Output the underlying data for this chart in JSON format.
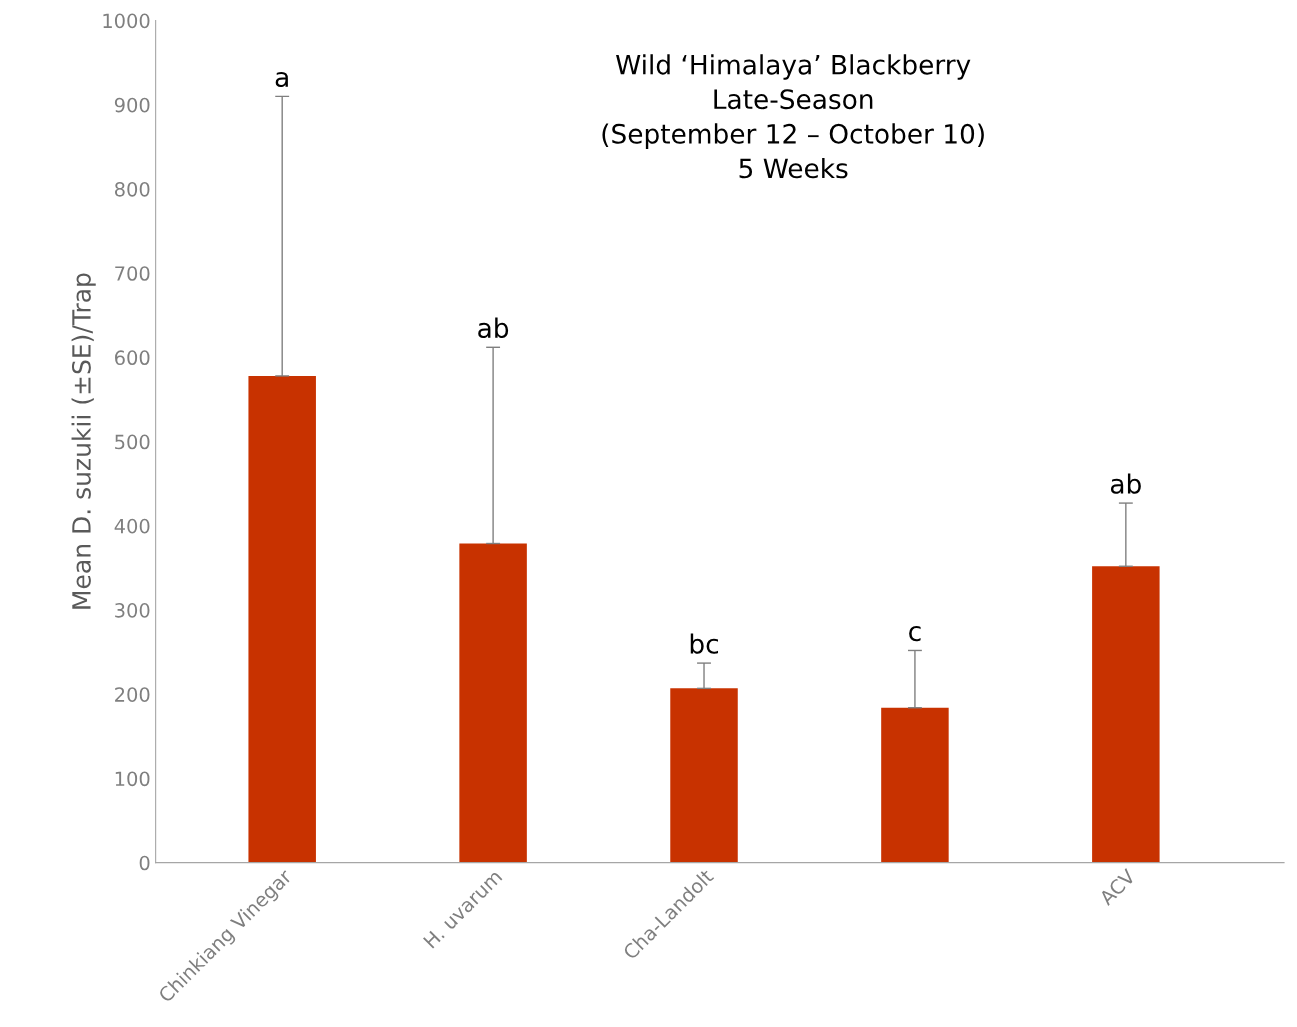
{
  "chart_data": {
    "type": "bar",
    "title": "Wild ‘Himalaya’ Blackberry\nLate-Season\n(September 12 – October 10)\n5 Weeks",
    "ylabel": "Mean D. suzukii (±SE)/Trap",
    "categories": [
      "Chinkiang Vinegar",
      "H. uvarum",
      "Cha-Landolt",
      null,
      "ACV"
    ],
    "values": [
      578,
      379,
      207,
      184,
      352
    ],
    "errors": [
      [
        578,
        910
      ],
      [
        379,
        612
      ],
      [
        207,
        237
      ],
      [
        184,
        252
      ],
      [
        352,
        427
      ]
    ],
    "color": "#c83200",
    "ylim": [
      0,
      1000
    ],
    "yticks": [
      0,
      100,
      200,
      300,
      400,
      500,
      600,
      700,
      800,
      900,
      1000
    ],
    "grid": false,
    "legend": false,
    "annotations": [
      "a",
      "ab",
      "bc",
      "c",
      "ab"
    ]
  }
}
